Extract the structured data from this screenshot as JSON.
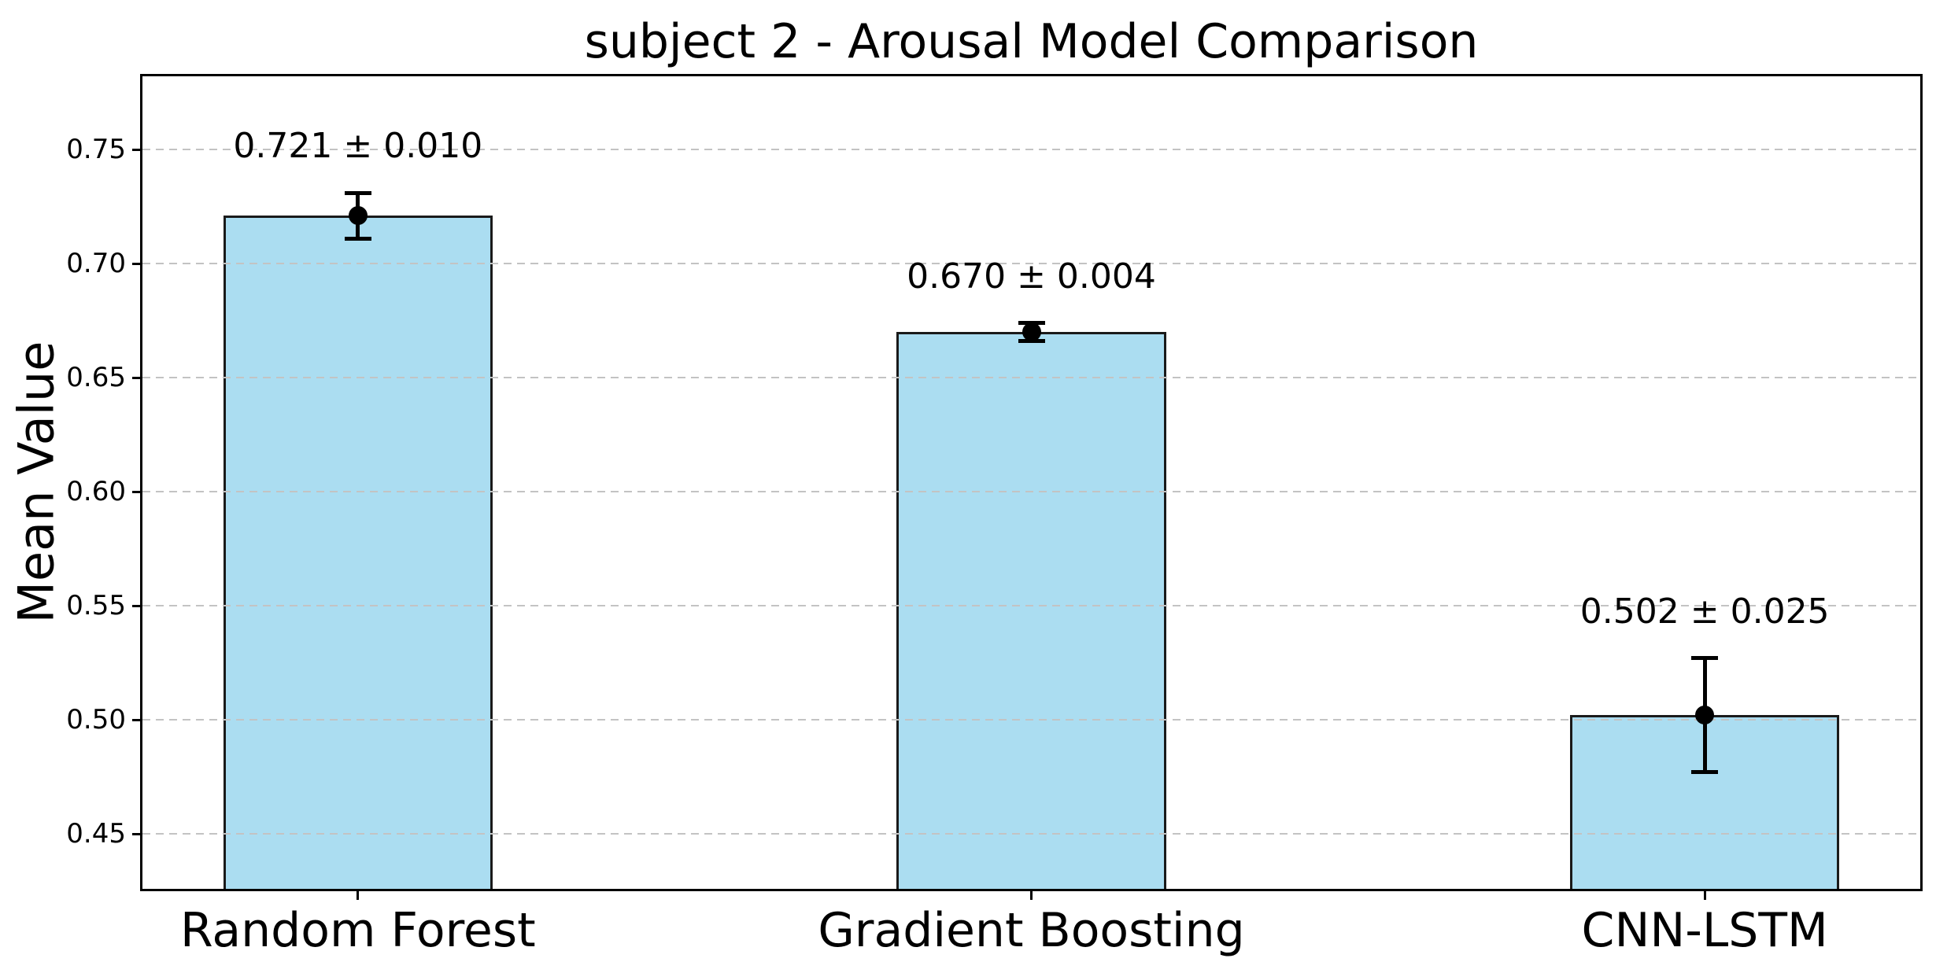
{
  "chart_data": {
    "type": "bar",
    "title": "subject 2 - Arousal Model Comparison",
    "xlabel": "",
    "ylabel": "Mean Value",
    "categories": [
      "Random Forest",
      "Gradient Boosting",
      "CNN-LSTM"
    ],
    "values": [
      0.721,
      0.67,
      0.502
    ],
    "errors": [
      0.01,
      0.004,
      0.025
    ],
    "annotations": [
      "0.721 ± 0.010",
      "0.670 ± 0.004",
      "0.502 ± 0.025"
    ],
    "yticks": [
      0.75,
      0.7,
      0.65,
      0.6,
      0.55,
      0.5,
      0.45
    ],
    "ytick_labels": [
      "0.75",
      "0.70",
      "0.65",
      "0.60",
      "0.55",
      "0.50",
      "0.45"
    ],
    "ylim": [
      0.4259,
      0.7822
    ],
    "xlim": [
      -0.32,
      2.32
    ],
    "bar_width": 0.4,
    "grid": "horizontal-dashed",
    "legend": "none",
    "error_marker": "circle",
    "colors": {
      "bar_fill": "#ABDDF1",
      "bar_edge": "#1a1a1a",
      "error_bar": "#000000",
      "gridline": "#c3c3c3",
      "spine": "#000000",
      "text": "#000000",
      "background": "#ffffff"
    }
  }
}
